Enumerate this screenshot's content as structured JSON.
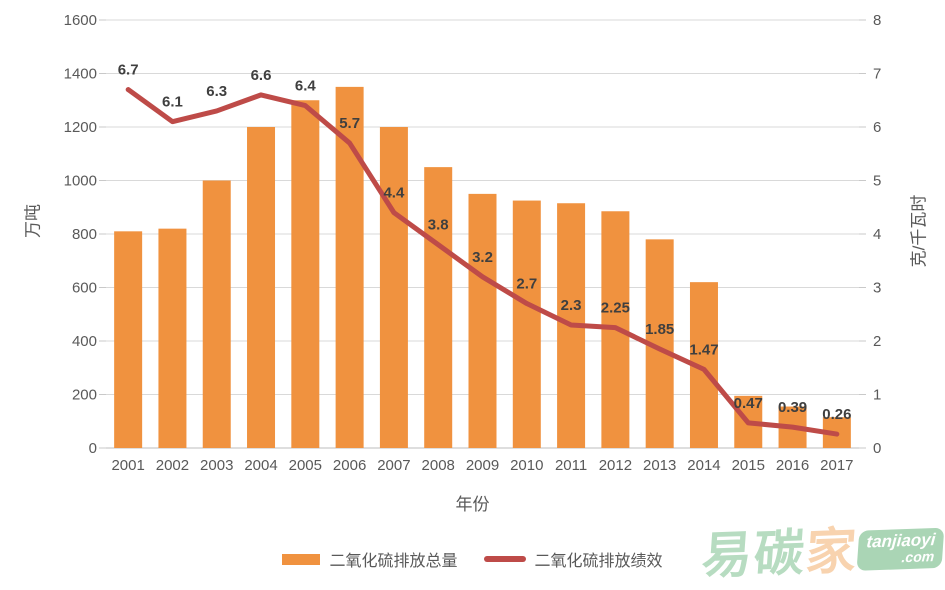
{
  "chart_data": {
    "type": "bar+line combo",
    "categories": [
      "2001",
      "2002",
      "2003",
      "2004",
      "2005",
      "2006",
      "2007",
      "2008",
      "2009",
      "2010",
      "2011",
      "2012",
      "2013",
      "2014",
      "2015",
      "2016",
      "2017"
    ],
    "series": [
      {
        "name": "二氧化硫排放总量",
        "type": "bar",
        "axis": "left",
        "color": "#F0923F",
        "values": [
          810,
          820,
          1000,
          1200,
          1300,
          1350,
          1200,
          1050,
          950,
          925,
          915,
          885,
          780,
          620,
          195,
          155,
          115
        ]
      },
      {
        "name": "二氧化硫排放绩效",
        "type": "line",
        "axis": "right",
        "color": "#BE4B48",
        "values": [
          6.7,
          6.1,
          6.3,
          6.6,
          6.4,
          5.7,
          4.4,
          3.8,
          3.2,
          2.7,
          2.3,
          2.25,
          1.85,
          1.47,
          0.47,
          0.39,
          0.26
        ],
        "data_labels": [
          "6.7",
          "6.1",
          "6.3",
          "6.6",
          "6.4",
          "5.7",
          "4.4",
          "3.8",
          "3.2",
          "2.7",
          "2.3",
          "2.25",
          "1.85",
          "1.47",
          "0.47",
          "0.39",
          "0.26"
        ]
      }
    ],
    "left_axis": {
      "title": "万吨",
      "min": 0,
      "max": 1600,
      "step": 200,
      "tick_labels": [
        "1600",
        "1400",
        "1200",
        "1000",
        "800",
        "600",
        "400",
        "200",
        "0"
      ]
    },
    "right_axis": {
      "title": "克/千瓦时",
      "min": 0,
      "max": 8,
      "step": 1,
      "tick_labels": [
        "8",
        "7",
        "6",
        "5",
        "4",
        "3",
        "2",
        "1",
        "0"
      ]
    },
    "xlabel": "年份",
    "grid": true,
    "legend_position": "bottom",
    "colors": {
      "grid": "#D9D9D9",
      "axis_line": "#C9C9C9",
      "tick_text": "#595959",
      "data_label": "#3F3F3F",
      "background": "#FFFFFF"
    }
  },
  "watermark": {
    "chars": [
      "易",
      "碳",
      "家"
    ],
    "char_colors": [
      "#B7DCC1",
      "#B7DCC1",
      "#F8D3AF"
    ],
    "badge": {
      "line1": "tanjiaoyi",
      "line2": ".com",
      "bg": "#AAD5B5",
      "text_color": "#FFFFFF"
    }
  }
}
